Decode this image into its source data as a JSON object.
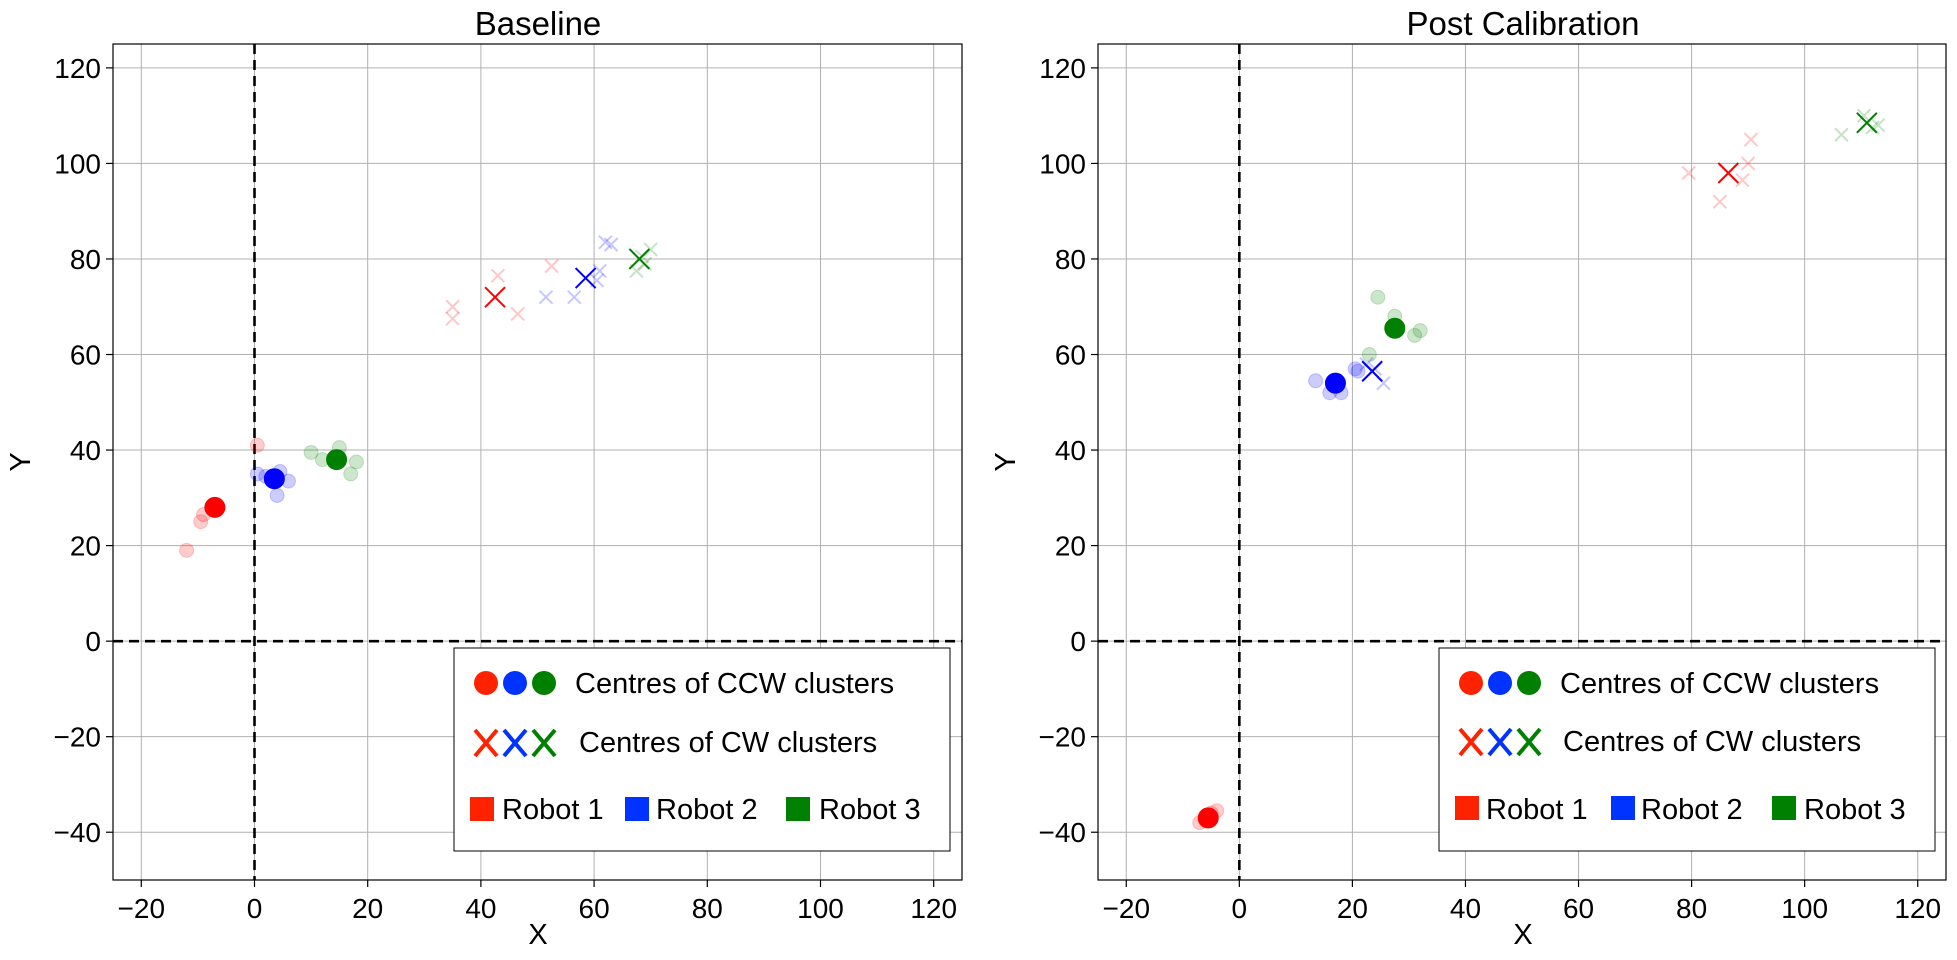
{
  "figure": {
    "background": "#ffffff"
  },
  "colors": {
    "robot1": "#ff0000",
    "robot2": "#0000ff",
    "robot3": "#008000",
    "grid": "#b0b0b0",
    "refline": "#000000"
  },
  "legend": {
    "ccw_label": "Centres of CCW clusters",
    "cw_label": "Centres of CW clusters",
    "robots": [
      {
        "label": "Robot 1",
        "color": "#ff2200"
      },
      {
        "label": "Robot 2",
        "color": "#0033ff"
      },
      {
        "label": "Robot 3",
        "color": "#008000"
      }
    ],
    "placement": "lower-right"
  },
  "chart_data": [
    {
      "type": "scatter",
      "title": "Baseline",
      "xlabel": "X",
      "ylabel": "Y",
      "xlim": [
        -25,
        125
      ],
      "ylim": [
        -50,
        125
      ],
      "xticks": [
        -20,
        0,
        20,
        40,
        60,
        80,
        100,
        120
      ],
      "yticks": [
        -40,
        -20,
        0,
        20,
        40,
        60,
        80,
        100,
        120
      ],
      "xtick_labels": [
        "−20",
        "0",
        "20",
        "40",
        "60",
        "80",
        "100",
        "120"
      ],
      "ytick_labels": [
        "−40",
        "−20",
        "0",
        "20",
        "40",
        "60",
        "80",
        "100",
        "120"
      ],
      "grid": true,
      "reference_lines": {
        "x": 0,
        "y": 0,
        "style": "dashed"
      },
      "series": [
        {
          "robot": 1,
          "direction": "CCW",
          "marker": "circle",
          "color": "#ff0000",
          "points": [
            [
              -12,
              19
            ],
            [
              -9.5,
              25
            ],
            [
              -9,
              26.5
            ],
            [
              0.5,
              41
            ]
          ],
          "centre": [
            -7,
            28
          ]
        },
        {
          "robot": 2,
          "direction": "CCW",
          "marker": "circle",
          "color": "#0000ff",
          "points": [
            [
              0.5,
              35
            ],
            [
              2,
              34.5
            ],
            [
              4,
              30.5
            ],
            [
              4.5,
              35.5
            ],
            [
              6,
              33.5
            ]
          ],
          "centre": [
            3.5,
            34
          ]
        },
        {
          "robot": 3,
          "direction": "CCW",
          "marker": "circle",
          "color": "#008000",
          "points": [
            [
              10,
              39.5
            ],
            [
              12,
              38
            ],
            [
              15,
              40.5
            ],
            [
              17,
              35
            ],
            [
              18,
              37.5
            ]
          ],
          "centre": [
            14.5,
            38
          ]
        },
        {
          "robot": 1,
          "direction": "CW",
          "marker": "x",
          "color": "#ff0000",
          "points": [
            [
              35,
              67.5
            ],
            [
              35,
              70
            ],
            [
              43,
              76.5
            ],
            [
              46.5,
              68.5
            ],
            [
              52.5,
              78.5
            ]
          ],
          "centre": [
            42.5,
            72
          ]
        },
        {
          "robot": 2,
          "direction": "CW",
          "marker": "x",
          "color": "#0000ff",
          "points": [
            [
              51.5,
              72
            ],
            [
              56.5,
              72
            ],
            [
              60.5,
              75.5
            ],
            [
              61,
              77.5
            ],
            [
              62,
              83.5
            ],
            [
              63,
              83
            ]
          ],
          "centre": [
            58.5,
            76
          ]
        },
        {
          "robot": 3,
          "direction": "CW",
          "marker": "x",
          "color": "#008000",
          "points": [
            [
              67.5,
              77.5
            ],
            [
              69,
              79
            ],
            [
              70,
              82
            ],
            [
              68.5,
              80.5
            ]
          ],
          "centre": [
            68,
            80
          ]
        }
      ]
    },
    {
      "type": "scatter",
      "title": "Post Calibration",
      "xlabel": "X",
      "ylabel": "Y",
      "xlim": [
        -25,
        125
      ],
      "ylim": [
        -50,
        125
      ],
      "xticks": [
        -20,
        0,
        20,
        40,
        60,
        80,
        100,
        120
      ],
      "yticks": [
        -40,
        -20,
        0,
        20,
        40,
        60,
        80,
        100,
        120
      ],
      "xtick_labels": [
        "−20",
        "0",
        "20",
        "40",
        "60",
        "80",
        "100",
        "120"
      ],
      "ytick_labels": [
        "−40",
        "−20",
        "0",
        "20",
        "40",
        "60",
        "80",
        "100",
        "120"
      ],
      "grid": true,
      "reference_lines": {
        "x": 0,
        "y": 0,
        "style": "dashed"
      },
      "series": [
        {
          "robot": 1,
          "direction": "CCW",
          "marker": "circle",
          "color": "#ff0000",
          "points": [
            [
              -7,
              -38
            ],
            [
              -6,
              -37.5
            ],
            [
              -4,
              -35.5
            ],
            [
              -5,
              -36
            ]
          ],
          "centre": [
            -5.5,
            -37
          ]
        },
        {
          "robot": 2,
          "direction": "CCW",
          "marker": "circle",
          "color": "#0000ff",
          "points": [
            [
              13.5,
              54.5
            ],
            [
              16,
              52
            ],
            [
              18,
              52
            ],
            [
              20.5,
              57
            ],
            [
              21,
              56.5
            ]
          ],
          "centre": [
            17,
            54
          ]
        },
        {
          "robot": 3,
          "direction": "CCW",
          "marker": "circle",
          "color": "#008000",
          "points": [
            [
              23,
              60
            ],
            [
              24.5,
              72
            ],
            [
              27.5,
              68
            ],
            [
              31,
              64
            ],
            [
              32,
              65
            ]
          ],
          "centre": [
            27.5,
            65.5
          ]
        },
        {
          "robot": 1,
          "direction": "CW",
          "marker": "x",
          "color": "#ff0000",
          "points": [
            [
              79.5,
              98
            ],
            [
              85,
              92
            ],
            [
              89,
              96.5
            ],
            [
              90,
              100
            ],
            [
              90.5,
              105
            ]
          ],
          "centre": [
            86.5,
            98
          ]
        },
        {
          "robot": 2,
          "direction": "CW",
          "marker": "x",
          "color": "#0000ff",
          "points": [
            [
              22.5,
              58
            ],
            [
              25.5,
              54
            ],
            [
              24,
              57
            ]
          ],
          "centre": [
            23.5,
            56.5
          ]
        },
        {
          "robot": 3,
          "direction": "CW",
          "marker": "x",
          "color": "#008000",
          "points": [
            [
              106.5,
              106
            ],
            [
              110.5,
              110
            ],
            [
              113,
              108
            ],
            [
              112,
              107.5
            ]
          ],
          "centre": [
            111,
            108.5
          ]
        }
      ]
    }
  ]
}
